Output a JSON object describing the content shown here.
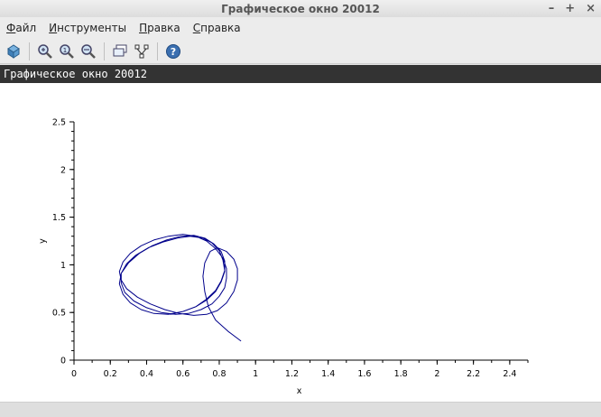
{
  "window": {
    "title": "Графическое окно 20012",
    "controls": [
      "–",
      "+",
      "×"
    ]
  },
  "menu": {
    "file_pre": "",
    "file_ul": "Ф",
    "file_post": "айл",
    "tools_pre": "",
    "tools_ul": "И",
    "tools_post": "нструменты",
    "edit_pre": "",
    "edit_ul": "П",
    "edit_post": "равка",
    "help_pre": "",
    "help_ul": "С",
    "help_post": "правка"
  },
  "toolbar": {
    "icons": [
      "rotate-icon",
      "zoom-icon",
      "zoom-reset-icon",
      "zoom-select-icon",
      "datatip-icon",
      "editor-icon",
      "help-icon"
    ]
  },
  "canvas": {
    "header": "Графическое окно 20012"
  },
  "chart_data": {
    "type": "line",
    "xlabel": "x",
    "ylabel": "y",
    "xlim": [
      0,
      2.5
    ],
    "ylim": [
      0,
      2.5
    ],
    "x_ticks": [
      "0",
      "0.2",
      "0.4",
      "0.6",
      "0.8",
      "1",
      "1.2",
      "1.4",
      "1.6",
      "1.8",
      "2",
      "2.2",
      "2.4"
    ],
    "y_ticks": [
      "0",
      "0.5",
      "1",
      "1.5",
      "2",
      "2.5"
    ],
    "grid": false,
    "line_color": "#00008b",
    "series": [
      {
        "x": [
          0.92,
          0.85,
          0.78,
          0.74,
          0.72,
          0.71,
          0.72,
          0.75,
          0.79,
          0.84,
          0.88,
          0.9,
          0.9,
          0.88,
          0.84,
          0.79,
          0.73,
          0.66,
          0.58,
          0.5,
          0.42,
          0.35,
          0.29,
          0.26,
          0.25,
          0.27,
          0.31,
          0.37,
          0.44,
          0.52,
          0.6,
          0.67,
          0.73,
          0.78,
          0.82,
          0.84,
          0.84,
          0.83,
          0.8,
          0.76,
          0.7,
          0.63,
          0.56,
          0.48,
          0.4,
          0.33,
          0.28,
          0.26,
          0.26,
          0.29,
          0.34,
          0.41,
          0.49,
          0.57,
          0.64,
          0.71,
          0.76,
          0.8,
          0.82,
          0.83,
          0.81,
          0.78,
          0.73,
          0.67,
          0.6,
          0.52,
          0.44,
          0.37,
          0.31,
          0.27,
          0.25,
          0.26,
          0.3,
          0.36,
          0.43,
          0.51,
          0.59,
          0.66,
          0.72,
          0.77,
          0.81,
          0.83,
          0.83,
          0.81,
          0.78,
          0.73,
          0.67,
          0.6,
          0.53
        ],
        "y": [
          0.2,
          0.3,
          0.42,
          0.56,
          0.72,
          0.88,
          1.02,
          1.14,
          1.18,
          1.14,
          1.06,
          0.96,
          0.84,
          0.72,
          0.6,
          0.52,
          0.48,
          0.47,
          0.49,
          0.53,
          0.59,
          0.66,
          0.75,
          0.84,
          0.93,
          1.03,
          1.12,
          1.2,
          1.26,
          1.3,
          1.32,
          1.3,
          1.25,
          1.17,
          1.07,
          0.96,
          0.86,
          0.76,
          0.67,
          0.59,
          0.53,
          0.49,
          0.48,
          0.5,
          0.55,
          0.62,
          0.71,
          0.81,
          0.91,
          1.01,
          1.1,
          1.18,
          1.24,
          1.28,
          1.3,
          1.28,
          1.23,
          1.15,
          1.05,
          0.94,
          0.83,
          0.73,
          0.64,
          0.56,
          0.51,
          0.48,
          0.49,
          0.53,
          0.6,
          0.69,
          0.8,
          0.91,
          1.02,
          1.12,
          1.2,
          1.26,
          1.3,
          1.31,
          1.28,
          1.22,
          1.14,
          1.04,
          0.93,
          0.82,
          0.72,
          0.63,
          0.56,
          0.51,
          0.48
        ]
      }
    ]
  }
}
